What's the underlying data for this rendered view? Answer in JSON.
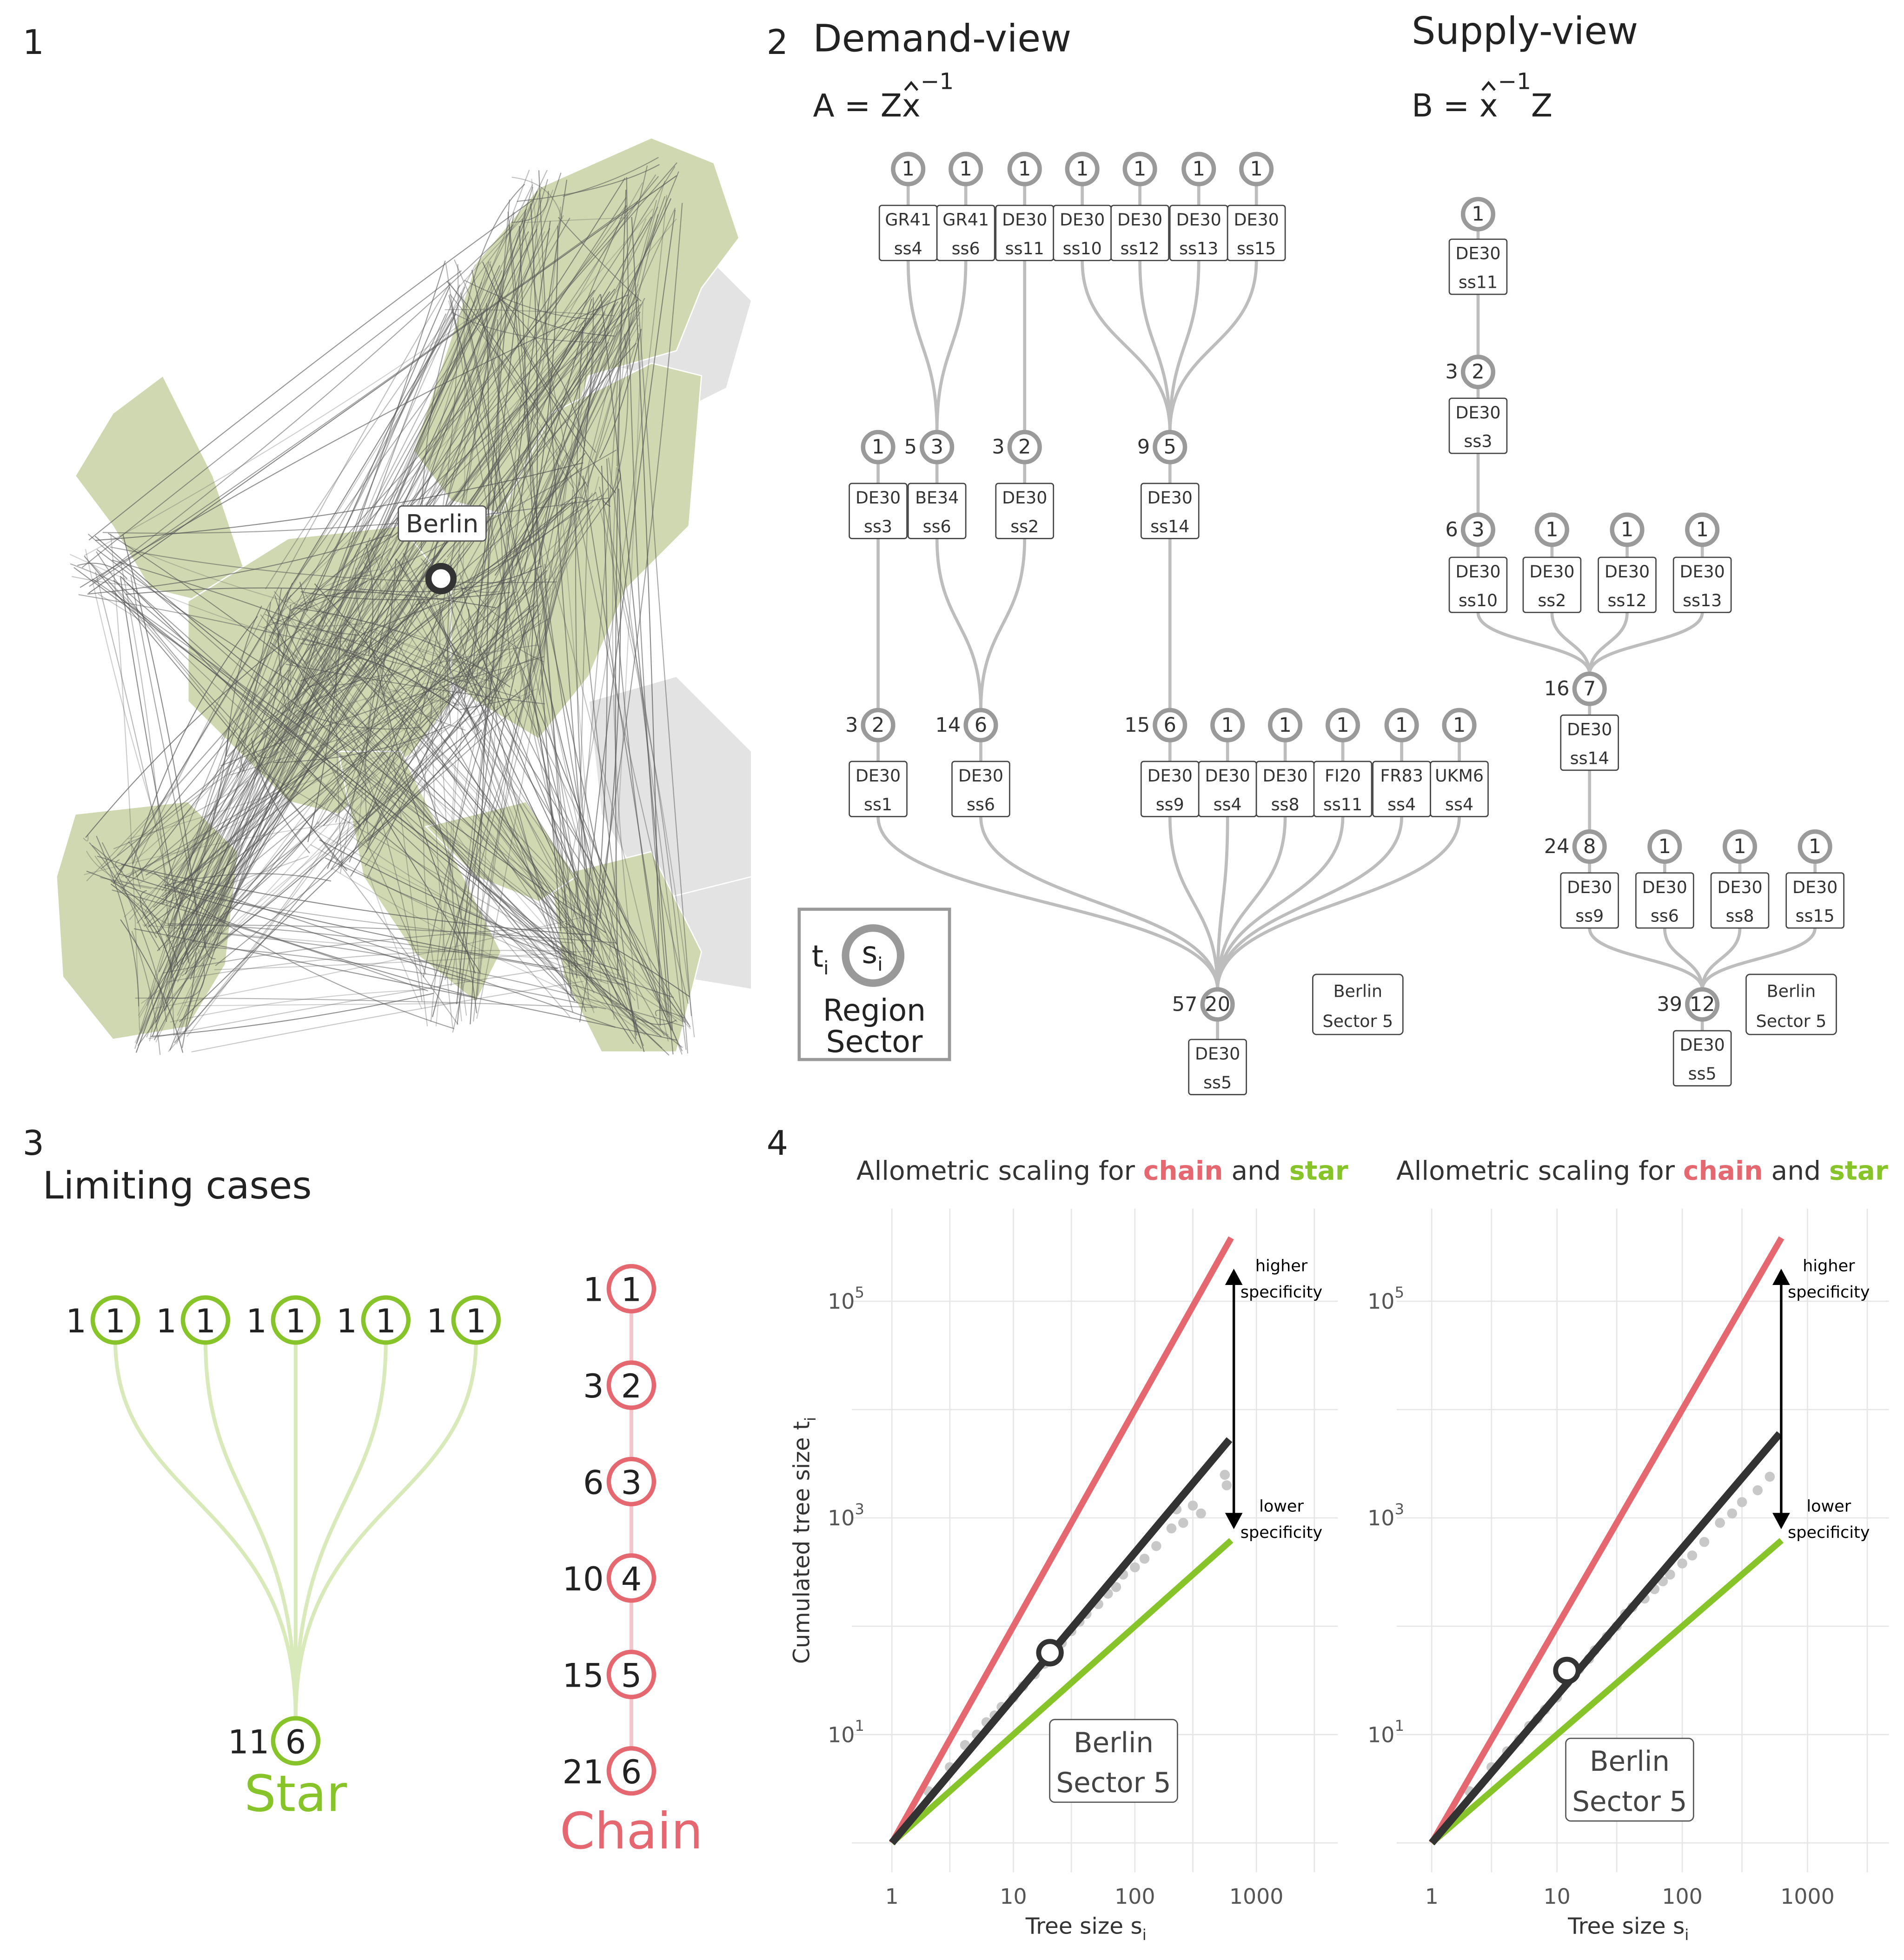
{
  "panels": {
    "p1": "1",
    "p2": "2",
    "p3": "3",
    "p4": "4"
  },
  "map": {
    "city_label": "Berlin",
    "colors": {
      "land_inside": "#cfd8b0",
      "land_outside": "#e3e3e3",
      "links": "#555555"
    }
  },
  "demand_view": {
    "title": "Demand-view",
    "formula": {
      "lhs": "A = Z",
      "hat": "x",
      "sup": "−1"
    },
    "nodes": [
      {
        "region": "GR41",
        "sector": "ss4",
        "s": "1",
        "t": ""
      },
      {
        "region": "GR41",
        "sector": "ss6",
        "s": "1",
        "t": ""
      },
      {
        "region": "DE30",
        "sector": "ss11",
        "s": "1",
        "t": ""
      },
      {
        "region": "DE30",
        "sector": "ss10",
        "s": "1",
        "t": ""
      },
      {
        "region": "DE30",
        "sector": "ss12",
        "s": "1",
        "t": ""
      },
      {
        "region": "DE30",
        "sector": "ss13",
        "s": "1",
        "t": ""
      },
      {
        "region": "DE30",
        "sector": "ss15",
        "s": "1",
        "t": ""
      },
      {
        "region": "DE30",
        "sector": "ss3",
        "s": "1",
        "t": ""
      },
      {
        "region": "BE34",
        "sector": "ss6",
        "s": "3",
        "t": "5"
      },
      {
        "region": "DE30",
        "sector": "ss2",
        "s": "2",
        "t": "3"
      },
      {
        "region": "DE30",
        "sector": "ss14",
        "s": "5",
        "t": "9"
      },
      {
        "region": "DE30",
        "sector": "ss1",
        "s": "2",
        "t": "3"
      },
      {
        "region": "DE30",
        "sector": "ss6",
        "s": "6",
        "t": "14"
      },
      {
        "region": "DE30",
        "sector": "ss9",
        "s": "6",
        "t": "15"
      },
      {
        "region": "DE30",
        "sector": "ss4",
        "s": "1",
        "t": ""
      },
      {
        "region": "DE30",
        "sector": "ss8",
        "s": "1",
        "t": ""
      },
      {
        "region": "FI20",
        "sector": "ss11",
        "s": "1",
        "t": ""
      },
      {
        "region": "FR83",
        "sector": "ss4",
        "s": "1",
        "t": ""
      },
      {
        "region": "UKM6",
        "sector": "ss4",
        "s": "1",
        "t": ""
      },
      {
        "region": "DE30",
        "sector": "ss5",
        "s": "20",
        "t": "57"
      }
    ],
    "edges": [
      [
        0,
        8
      ],
      [
        1,
        8
      ],
      [
        2,
        9
      ],
      [
        3,
        10
      ],
      [
        4,
        10
      ],
      [
        5,
        10
      ],
      [
        6,
        10
      ],
      [
        7,
        11
      ],
      [
        8,
        12
      ],
      [
        9,
        12
      ],
      [
        10,
        13
      ],
      [
        11,
        19
      ],
      [
        12,
        19
      ],
      [
        13,
        19
      ],
      [
        14,
        19
      ],
      [
        15,
        19
      ],
      [
        16,
        19
      ],
      [
        17,
        19
      ],
      [
        18,
        19
      ]
    ],
    "focus_label": {
      "line1": "Berlin",
      "line2": "Sector 5"
    }
  },
  "supply_view": {
    "title": "Supply-view",
    "formula": {
      "lhs": "B = ",
      "hat": "x",
      "sup": "−1",
      "rhs": "Z"
    },
    "nodes": [
      {
        "region": "DE30",
        "sector": "ss11",
        "s": "1",
        "t": ""
      },
      {
        "region": "DE30",
        "sector": "ss3",
        "s": "2",
        "t": "3"
      },
      {
        "region": "DE30",
        "sector": "ss10",
        "s": "3",
        "t": "6"
      },
      {
        "region": "DE30",
        "sector": "ss2",
        "s": "1",
        "t": ""
      },
      {
        "region": "DE30",
        "sector": "ss12",
        "s": "1",
        "t": ""
      },
      {
        "region": "DE30",
        "sector": "ss13",
        "s": "1",
        "t": ""
      },
      {
        "region": "DE30",
        "sector": "ss14",
        "s": "7",
        "t": "16"
      },
      {
        "region": "DE30",
        "sector": "ss9",
        "s": "8",
        "t": "24"
      },
      {
        "region": "DE30",
        "sector": "ss6",
        "s": "1",
        "t": ""
      },
      {
        "region": "DE30",
        "sector": "ss8",
        "s": "1",
        "t": ""
      },
      {
        "region": "DE30",
        "sector": "ss15",
        "s": "1",
        "t": ""
      },
      {
        "region": "DE30",
        "sector": "ss5",
        "s": "12",
        "t": "39"
      }
    ],
    "edges": [
      [
        0,
        1
      ],
      [
        1,
        2
      ],
      [
        2,
        6
      ],
      [
        3,
        6
      ],
      [
        4,
        6
      ],
      [
        5,
        6
      ],
      [
        6,
        7
      ],
      [
        7,
        11
      ],
      [
        8,
        11
      ],
      [
        9,
        11
      ],
      [
        10,
        11
      ]
    ],
    "focus_label": {
      "line1": "Berlin",
      "line2": "Sector 5"
    }
  },
  "legend": {
    "t": "t",
    "t_sub": "i",
    "s": "s",
    "s_sub": "i",
    "line1": "Region",
    "line2": "Sector"
  },
  "limiting_cases": {
    "title": "Limiting cases",
    "star": {
      "label": "Star",
      "color": "#87c42a",
      "leaves": [
        {
          "t": "1",
          "s": "1"
        },
        {
          "t": "1",
          "s": "1"
        },
        {
          "t": "1",
          "s": "1"
        },
        {
          "t": "1",
          "s": "1"
        },
        {
          "t": "1",
          "s": "1"
        }
      ],
      "root": {
        "t": "11",
        "s": "6"
      }
    },
    "chain": {
      "label": "Chain",
      "color": "#e5676f",
      "nodes": [
        {
          "t": "1",
          "s": "1"
        },
        {
          "t": "3",
          "s": "2"
        },
        {
          "t": "6",
          "s": "3"
        },
        {
          "t": "10",
          "s": "4"
        },
        {
          "t": "15",
          "s": "5"
        },
        {
          "t": "21",
          "s": "6"
        }
      ]
    }
  },
  "chart_data": [
    {
      "type": "line",
      "title": {
        "pre": "Allometric scaling for ",
        "chain": "chain",
        "mid": " and ",
        "star": "star"
      },
      "xlabel": "Tree size s",
      "xlabel_sub": "i",
      "ylabel": "Cumulated tree size t",
      "ylabel_sub": "i",
      "xscale": "log",
      "yscale": "log",
      "xlim": [
        0.55,
        4000
      ],
      "ylim": [
        0.7,
        500000
      ],
      "xticks": [
        "1",
        "10",
        "100",
        "1000"
      ],
      "yticks": [
        {
          "base": "10",
          "exp": "1"
        },
        {
          "base": "10",
          "exp": "3"
        },
        {
          "base": "10",
          "exp": "5"
        }
      ],
      "grid": true,
      "series": [
        {
          "name": "chain",
          "color": "#e5676f",
          "exponent": 2.0,
          "x_range": [
            1,
            620
          ]
        },
        {
          "name": "star",
          "color": "#87c42a",
          "exponent": 1.0,
          "x_range": [
            1,
            620
          ]
        },
        {
          "color": "#333333",
          "exponent": 1.34,
          "x_range": [
            1,
            600
          ]
        }
      ],
      "points": [
        [
          2,
          3
        ],
        [
          3,
          5
        ],
        [
          4,
          8
        ],
        [
          5,
          10
        ],
        [
          6,
          13
        ],
        [
          7,
          15
        ],
        [
          8,
          18
        ],
        [
          10,
          22
        ],
        [
          12,
          28
        ],
        [
          15,
          36
        ],
        [
          18,
          45
        ],
        [
          20,
          52
        ],
        [
          25,
          70
        ],
        [
          30,
          90
        ],
        [
          35,
          110
        ],
        [
          40,
          130
        ],
        [
          50,
          160
        ],
        [
          60,
          200
        ],
        [
          70,
          230
        ],
        [
          80,
          300
        ],
        [
          100,
          350
        ],
        [
          120,
          420
        ],
        [
          150,
          550
        ],
        [
          200,
          800
        ],
        [
          220,
          1200
        ],
        [
          250,
          900
        ],
        [
          300,
          1300
        ],
        [
          350,
          1100
        ],
        [
          550,
          2500
        ],
        [
          570,
          2000
        ]
      ],
      "highlight": {
        "s": 20,
        "t": 57,
        "label1": "Berlin",
        "label2": "Sector 5"
      },
      "annotation": {
        "up1": "higher",
        "up2": "specificity",
        "down1": "lower",
        "down2": "specificity"
      }
    },
    {
      "type": "line",
      "title": {
        "pre": "Allometric scaling for ",
        "chain": "chain",
        "mid": " and ",
        "star": "star"
      },
      "xlabel": "Tree size s",
      "xlabel_sub": "i",
      "ylabel": "",
      "ylabel_sub": "",
      "xscale": "log",
      "yscale": "log",
      "xlim": [
        0.55,
        4000
      ],
      "ylim": [
        0.7,
        500000
      ],
      "xticks": [
        "1",
        "10",
        "100",
        "1000"
      ],
      "yticks": [
        {
          "base": "10",
          "exp": "1"
        },
        {
          "base": "10",
          "exp": "3"
        },
        {
          "base": "10",
          "exp": "5"
        }
      ],
      "grid": true,
      "series": [
        {
          "name": "chain",
          "color": "#e5676f",
          "exponent": 2.0,
          "x_range": [
            1,
            620
          ]
        },
        {
          "name": "star",
          "color": "#87c42a",
          "exponent": 1.0,
          "x_range": [
            1,
            620
          ]
        },
        {
          "color": "#333333",
          "exponent": 1.36,
          "x_range": [
            1,
            600
          ]
        }
      ],
      "points": [
        [
          2,
          3
        ],
        [
          3,
          5
        ],
        [
          4,
          7
        ],
        [
          5,
          9
        ],
        [
          6,
          12
        ],
        [
          7,
          14
        ],
        [
          8,
          17
        ],
        [
          10,
          22
        ],
        [
          12,
          30
        ],
        [
          15,
          40
        ],
        [
          18,
          50
        ],
        [
          20,
          60
        ],
        [
          25,
          80
        ],
        [
          30,
          100
        ],
        [
          35,
          130
        ],
        [
          40,
          150
        ],
        [
          50,
          180
        ],
        [
          60,
          220
        ],
        [
          70,
          260
        ],
        [
          80,
          300
        ],
        [
          100,
          380
        ],
        [
          120,
          450
        ],
        [
          150,
          600
        ],
        [
          200,
          900
        ],
        [
          250,
          1100
        ],
        [
          300,
          1400
        ],
        [
          400,
          1800
        ],
        [
          500,
          2400
        ]
      ],
      "highlight": {
        "s": 12,
        "t": 39,
        "label1": "Berlin",
        "label2": "Sector 5"
      },
      "annotation": {
        "up1": "higher",
        "up2": "specificity",
        "down1": "lower",
        "down2": "specificity"
      }
    }
  ]
}
